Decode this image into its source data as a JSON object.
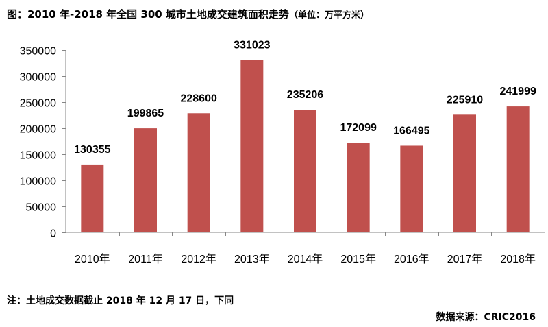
{
  "title": {
    "main": "图：2010 年-2018 年全国 300 城市土地成交建筑面积走势",
    "unit": "（单位：万平方米）"
  },
  "note": "注：土地成交数据截止 2018 年 12 月 17 日，下同",
  "source": "数据来源：CRIC2016",
  "colors": {
    "bar": "#c0504d",
    "axis": "#868686"
  },
  "chart_data": {
    "type": "bar",
    "categories": [
      "2010年",
      "2011年",
      "2012年",
      "2013年",
      "2014年",
      "2015年",
      "2016年",
      "2017年",
      "2018年"
    ],
    "values": [
      130355,
      199865,
      228600,
      331023,
      235206,
      172099,
      166495,
      225910,
      241999
    ],
    "ylim": [
      0,
      350000
    ],
    "yticks": [
      0,
      50000,
      100000,
      150000,
      200000,
      250000,
      300000,
      350000
    ],
    "grid": false,
    "legend": "none"
  }
}
